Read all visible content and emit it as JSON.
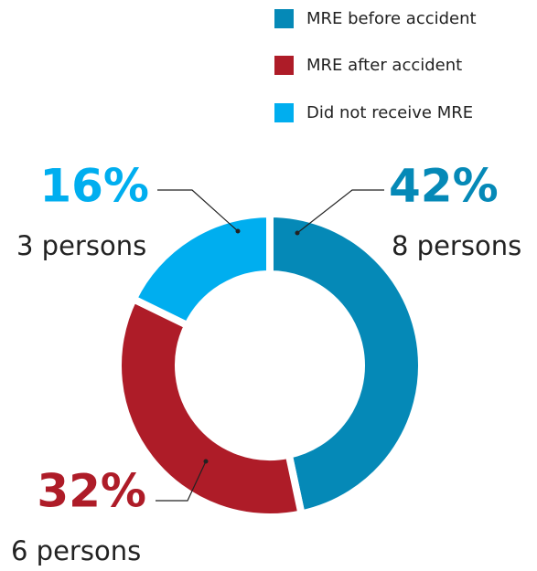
{
  "chart_data": {
    "type": "donut",
    "categories": [
      "MRE before accident",
      "MRE after accident",
      "Did not receive MRE"
    ],
    "values": [
      42,
      32,
      16
    ],
    "value_labels": [
      "42%",
      "32%",
      "16%"
    ],
    "sublabels": [
      "8 persons",
      "6 persons",
      "3 persons"
    ],
    "colors": [
      "#0589b7",
      "#ae1c28",
      "#00aeef"
    ],
    "legend": "top-right"
  }
}
